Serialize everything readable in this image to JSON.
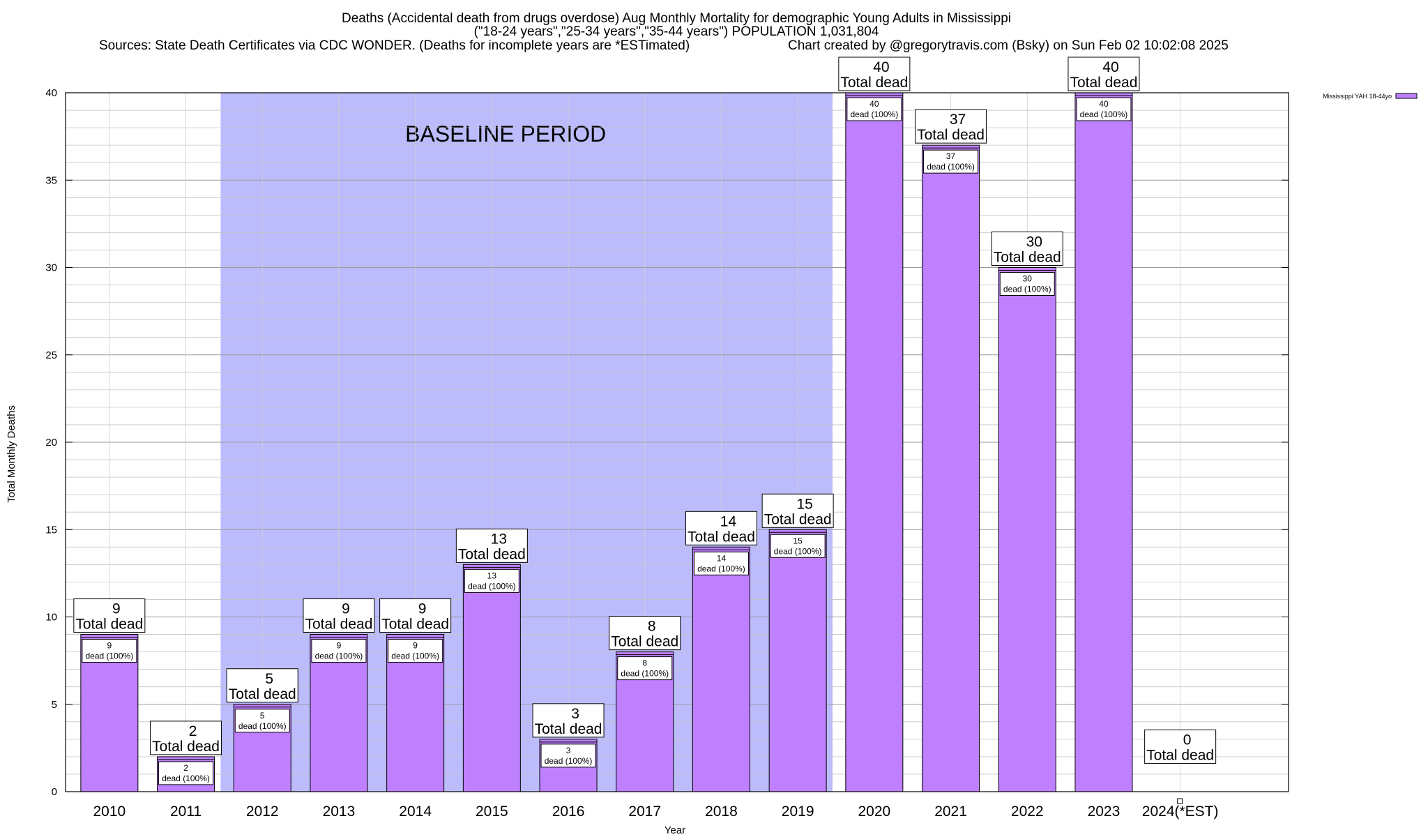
{
  "chart_data": {
    "type": "bar",
    "title": "Deaths (Accidental death from drugs overdose) Aug Monthly Mortality for demographic Young Adults in Mississippi",
    "subtitle": "(\"18-24 years\",\"25-34 years\",\"35-44 years\") POPULATION 1,031,804",
    "sources": "Sources: State Death Certificates via CDC WONDER. (Deaths for incomplete years are *ESTimated)",
    "credit": "Chart created by @gregorytravis.com (Bsky) on Sun Feb 02 10:02:08 2025",
    "xlabel": "Year",
    "ylabel": "Total Monthly Deaths",
    "ylim": [
      0,
      40
    ],
    "yticks": [
      0,
      5,
      10,
      15,
      20,
      25,
      30,
      35,
      40
    ],
    "categories": [
      "2010",
      "2011",
      "2012",
      "2013",
      "2014",
      "2015",
      "2016",
      "2017",
      "2018",
      "2019",
      "2020",
      "2021",
      "2022",
      "2023",
      "2024(*EST)"
    ],
    "series": [
      {
        "name": "Mississippi YAH 18-44yo",
        "color": "#bf80ff",
        "values": [
          9,
          2,
          5,
          9,
          9,
          13,
          3,
          8,
          14,
          15,
          40,
          37,
          30,
          40,
          0
        ]
      }
    ],
    "top_label_suffix": "Total dead",
    "inner_label_suffix": "dead (100%)",
    "baseline_band": {
      "label": "BASELINE PERIOD",
      "from": "2012",
      "to": "2019",
      "color": "#bcbcfc"
    },
    "grid": true,
    "legend_position": "top-right"
  }
}
